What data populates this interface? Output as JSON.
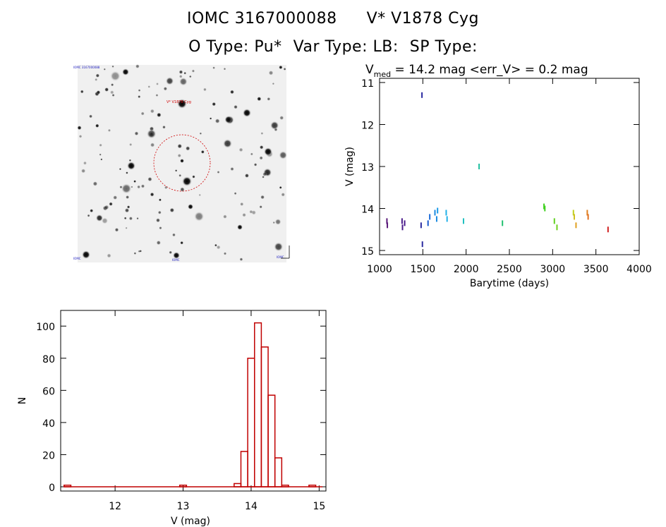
{
  "header": {
    "object_id": "IOMC 3167000088",
    "object_name": "V* V1878 Cyg",
    "otype": "O Type: Pu*",
    "vartype": "Var Type: LB:",
    "sptype": "SP Type:"
  },
  "thumbnail": {
    "target_label": "V* V1878 Cyg",
    "corner_labels": [
      "IOMC 3167000088",
      "IOMC",
      "IOMC",
      "IOMC"
    ]
  },
  "chart_data": [
    {
      "type": "scatter",
      "title": "Vmed = 14.2 mag <err_V> = 0.2 mag",
      "title_parts": {
        "v": "V",
        "sub": "med",
        "rest": " = 14.2 mag <err_V> = 0.2 mag"
      },
      "xlabel": "Barytime (days)",
      "ylabel": "V (mag)",
      "xlim": [
        1000,
        4000
      ],
      "ylim": [
        15.1,
        10.9
      ],
      "y_inverted": true,
      "xticks": [
        1000,
        1500,
        2000,
        2500,
        3000,
        3500,
        4000
      ],
      "yticks": [
        11,
        12,
        13,
        14,
        15
      ],
      "points": [
        {
          "x": 1085,
          "y": 14.3,
          "color": "#5a1a7a"
        },
        {
          "x": 1090,
          "y": 14.4,
          "color": "#5a1a7a"
        },
        {
          "x": 1260,
          "y": 14.3,
          "color": "#4a1a8a"
        },
        {
          "x": 1265,
          "y": 14.45,
          "color": "#4a1a8a"
        },
        {
          "x": 1290,
          "y": 14.35,
          "color": "#4a1a8a"
        },
        {
          "x": 1480,
          "y": 14.4,
          "color": "#2a2aa0"
        },
        {
          "x": 1490,
          "y": 11.3,
          "color": "#2a2aa0"
        },
        {
          "x": 1495,
          "y": 14.85,
          "color": "#2a2aa0"
        },
        {
          "x": 1560,
          "y": 14.35,
          "color": "#1a5acc"
        },
        {
          "x": 1580,
          "y": 14.2,
          "color": "#1a6ad8"
        },
        {
          "x": 1640,
          "y": 14.1,
          "color": "#1a8ae0"
        },
        {
          "x": 1660,
          "y": 14.25,
          "color": "#1a8ae0"
        },
        {
          "x": 1670,
          "y": 14.05,
          "color": "#1a9ae8"
        },
        {
          "x": 1770,
          "y": 14.1,
          "color": "#20b0e8"
        },
        {
          "x": 1780,
          "y": 14.25,
          "color": "#20b0e8"
        },
        {
          "x": 1970,
          "y": 14.3,
          "color": "#20c0c0"
        },
        {
          "x": 2150,
          "y": 13.0,
          "color": "#20c0a0"
        },
        {
          "x": 2420,
          "y": 14.35,
          "color": "#20c070"
        },
        {
          "x": 2900,
          "y": 13.95,
          "color": "#40d020"
        },
        {
          "x": 2910,
          "y": 14.0,
          "color": "#40d020"
        },
        {
          "x": 3020,
          "y": 14.3,
          "color": "#60d020"
        },
        {
          "x": 3050,
          "y": 14.45,
          "color": "#70d020"
        },
        {
          "x": 3240,
          "y": 14.1,
          "color": "#c0d020"
        },
        {
          "x": 3250,
          "y": 14.2,
          "color": "#d0c020"
        },
        {
          "x": 3270,
          "y": 14.4,
          "color": "#e0a020"
        },
        {
          "x": 3400,
          "y": 14.1,
          "color": "#e08020"
        },
        {
          "x": 3410,
          "y": 14.2,
          "color": "#e07020"
        },
        {
          "x": 3640,
          "y": 14.5,
          "color": "#d02020"
        }
      ]
    },
    {
      "type": "bar",
      "title": "",
      "xlabel": "V (mag)",
      "ylabel": "N",
      "xlim": [
        11.2,
        15.1
      ],
      "ylim": [
        0,
        108
      ],
      "xticks": [
        12,
        13,
        14,
        15
      ],
      "yticks": [
        0,
        20,
        40,
        60,
        80,
        100
      ],
      "bin_width": 0.1,
      "bins": [
        {
          "x": 11.3,
          "n": 1
        },
        {
          "x": 13.0,
          "n": 1
        },
        {
          "x": 13.8,
          "n": 2
        },
        {
          "x": 13.9,
          "n": 22
        },
        {
          "x": 14.0,
          "n": 80
        },
        {
          "x": 14.1,
          "n": 102
        },
        {
          "x": 14.2,
          "n": 87
        },
        {
          "x": 14.3,
          "n": 57
        },
        {
          "x": 14.4,
          "n": 18
        },
        {
          "x": 14.5,
          "n": 1
        },
        {
          "x": 14.9,
          "n": 1
        }
      ],
      "bar_color": "#c00000"
    }
  ]
}
